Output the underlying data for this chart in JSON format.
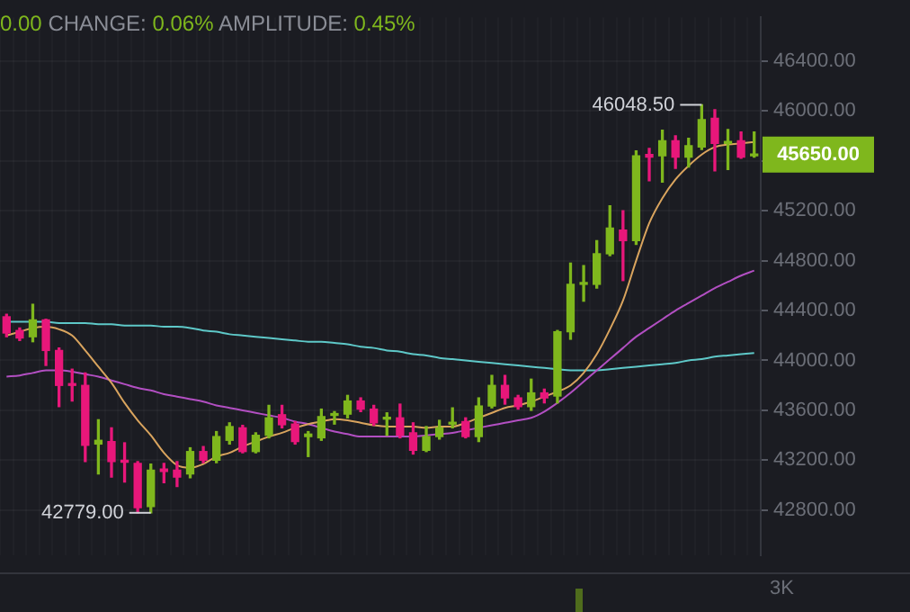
{
  "chart_data": [
    {
      "type": "candlestick",
      "title": "0.00 CHANGE: 0.06% AMPLITUDE: 0.45%",
      "categories": [
        null,
        null,
        null,
        null,
        null,
        null,
        null,
        null,
        null,
        null,
        null,
        null,
        null,
        null,
        null,
        null,
        null,
        null,
        null,
        null,
        null,
        null,
        null,
        null,
        null,
        null,
        null,
        null,
        null,
        null,
        null,
        null,
        null,
        null,
        null,
        null,
        null,
        null,
        null,
        null,
        null,
        null,
        null,
        null,
        null,
        null,
        null,
        null,
        null,
        null,
        null,
        null,
        null,
        null,
        null,
        null,
        null,
        null
      ],
      "ohlc": [
        [
          44350,
          44370,
          44190,
          44220
        ],
        [
          44240,
          44260,
          44160,
          44180
        ],
        [
          44190,
          44450,
          44150,
          44325
        ],
        [
          44325,
          44330,
          43960,
          44080
        ],
        [
          44080,
          44100,
          43630,
          43800
        ],
        [
          43810,
          43930,
          43675,
          43800
        ],
        [
          43800,
          43900,
          43190,
          43320
        ],
        [
          43330,
          43525,
          43090,
          43360
        ],
        [
          43350,
          43460,
          43065,
          43190
        ],
        [
          43195,
          43340,
          43025,
          43185
        ],
        [
          43175,
          43190,
          42779,
          42820
        ],
        [
          42830,
          43170,
          42779,
          43120
        ],
        [
          43130,
          43175,
          43020,
          43110
        ],
        [
          43120,
          43190,
          42990,
          43065
        ],
        [
          43090,
          43300,
          43060,
          43270
        ],
        [
          43270,
          43310,
          43180,
          43200
        ],
        [
          43200,
          43430,
          43180,
          43390
        ],
        [
          43360,
          43500,
          43330,
          43470
        ],
        [
          43460,
          43480,
          43260,
          43270
        ],
        [
          43270,
          43420,
          43260,
          43400
        ],
        [
          43400,
          43640,
          43380,
          43540
        ],
        [
          43565,
          43640,
          43460,
          43485
        ],
        [
          43490,
          43510,
          43330,
          43350
        ],
        [
          43390,
          43430,
          43230,
          43410
        ],
        [
          43380,
          43610,
          43360,
          43550
        ],
        [
          43560,
          43590,
          43490,
          43570
        ],
        [
          43570,
          43720,
          43540,
          43675
        ],
        [
          43675,
          43700,
          43590,
          43610
        ],
        [
          43610,
          43640,
          43480,
          43500
        ],
        [
          43530,
          43580,
          43400,
          43540
        ],
        [
          43540,
          43650,
          43380,
          43400
        ],
        [
          43420,
          43500,
          43250,
          43280
        ],
        [
          43280,
          43470,
          43270,
          43390
        ],
        [
          43390,
          43520,
          43370,
          43460
        ],
        [
          43490,
          43620,
          43460,
          43500
        ],
        [
          43510,
          43540,
          43380,
          43390
        ],
        [
          43390,
          43700,
          43350,
          43635
        ],
        [
          43635,
          43880,
          43620,
          43800
        ],
        [
          43800,
          43880,
          43650,
          43700
        ],
        [
          43700,
          43720,
          43610,
          43630
        ],
        [
          43630,
          43850,
          43600,
          43740
        ],
        [
          43740,
          43770,
          43660,
          43700
        ],
        [
          43715,
          44240,
          43660,
          44230
        ],
        [
          44230,
          44780,
          44170,
          44610
        ],
        [
          44610,
          44760,
          44475,
          44620
        ],
        [
          44610,
          44960,
          44580,
          44855
        ],
        [
          44855,
          45240,
          44840,
          45060
        ],
        [
          45045,
          45200,
          44640,
          44960
        ],
        [
          44960,
          45680,
          44930,
          45640
        ],
        [
          45650,
          45700,
          45440,
          45630
        ],
        [
          45640,
          45845,
          45430,
          45760
        ],
        [
          45760,
          45800,
          45540,
          45630
        ],
        [
          45630,
          45780,
          45550,
          45720
        ],
        [
          45710,
          46048.5,
          45690,
          45930
        ],
        [
          45940,
          46010,
          45520,
          45740
        ],
        [
          45740,
          45850,
          45530,
          45750
        ],
        [
          45760,
          45830,
          45620,
          45630
        ],
        [
          45640,
          45830,
          45630,
          45650
        ]
      ],
      "colors": [
        "#e8177a",
        "#e8177a",
        "#7fb71d",
        "#e8177a",
        "#e8177a",
        "#e8177a",
        "#e8177a",
        "#7fb71d",
        "#e8177a",
        "#e8177a",
        "#e8177a",
        "#7fb71d",
        "#e8177a",
        "#e8177a",
        "#7fb71d",
        "#e8177a",
        "#7fb71d",
        "#7fb71d",
        "#e8177a",
        "#7fb71d",
        "#7fb71d",
        "#e8177a",
        "#e8177a",
        "#7fb71d",
        "#7fb71d",
        "#7fb71d",
        "#7fb71d",
        "#e8177a",
        "#e8177a",
        "#7fb71d",
        "#e8177a",
        "#e8177a",
        "#7fb71d",
        "#7fb71d",
        "#7fb71d",
        "#e8177a",
        "#7fb71d",
        "#7fb71d",
        "#e8177a",
        "#e8177a",
        "#7fb71d",
        "#e8177a",
        "#7fb71d",
        "#7fb71d",
        "#7fb71d",
        "#7fb71d",
        "#7fb71d",
        "#e8177a",
        "#7fb71d",
        "#e8177a",
        "#7fb71d",
        "#e8177a",
        "#7fb71d",
        "#7fb71d",
        "#e8177a",
        "#7fb71d",
        "#e8177a",
        "#7fb71d"
      ],
      "series": [
        {
          "type": "line",
          "color": "#d9a45e",
          "values": [
            44200,
            44230,
            44260,
            44270,
            44250,
            44200,
            44080,
            43950,
            43820,
            43660,
            43520,
            43400,
            43260,
            43160,
            43140,
            43170,
            43230,
            43260,
            43310,
            43350,
            43390,
            43420,
            43460,
            43490,
            43510,
            43530,
            43520,
            43500,
            43480,
            43470,
            43470,
            43470,
            43460,
            43470,
            43470,
            43500,
            43540,
            43580,
            43620,
            43640,
            43670,
            43710,
            43750,
            43800,
            43900,
            44050,
            44250,
            44480,
            44800,
            45100,
            45300,
            45450,
            45560,
            45650,
            45710,
            45730,
            45740,
            45750
          ]
        },
        {
          "type": "line",
          "color": "#b24fc2",
          "values": [
            43870,
            43880,
            43900,
            43920,
            43920,
            43910,
            43890,
            43870,
            43840,
            43810,
            43780,
            43760,
            43730,
            43710,
            43690,
            43670,
            43640,
            43620,
            43600,
            43580,
            43560,
            43540,
            43510,
            43490,
            43460,
            43430,
            43410,
            43390,
            43390,
            43390,
            43390,
            43390,
            43400,
            43410,
            43420,
            43440,
            43460,
            43480,
            43500,
            43520,
            43540,
            43590,
            43660,
            43740,
            43830,
            43920,
            44010,
            44100,
            44190,
            44260,
            44330,
            44400,
            44460,
            44520,
            44580,
            44630,
            44680,
            44720
          ]
        },
        {
          "type": "line",
          "color": "#5ec8c8",
          "values": [
            44310,
            44310,
            44310,
            44310,
            44300,
            44300,
            44300,
            44290,
            44290,
            44280,
            44280,
            44280,
            44270,
            44270,
            44260,
            44240,
            44230,
            44210,
            44200,
            44190,
            44180,
            44170,
            44160,
            44150,
            44150,
            44140,
            44130,
            44110,
            44100,
            44080,
            44070,
            44050,
            44040,
            44020,
            44010,
            44000,
            43990,
            43980,
            43970,
            43960,
            43950,
            43940,
            43930,
            43920,
            43920,
            43920,
            43930,
            43940,
            43950,
            43960,
            43970,
            43980,
            44000,
            44010,
            44030,
            44040,
            44050,
            44060
          ]
        }
      ],
      "ylim": [
        42440,
        46750
      ],
      "yticks": [
        {
          "value": 42800,
          "label": "42800.00"
        },
        {
          "value": 43200,
          "label": "43200.00"
        },
        {
          "value": 43600,
          "label": "43600.00"
        },
        {
          "value": 44000,
          "label": "44000.00"
        },
        {
          "value": 44400,
          "label": "44400.00"
        },
        {
          "value": 44800,
          "label": "44800.00"
        },
        {
          "value": 45200,
          "label": "45200.00"
        },
        {
          "value": 45600,
          "label": null
        },
        {
          "value": 46000,
          "label": "46000.00"
        },
        {
          "value": 46400,
          "label": "46400.00"
        }
      ],
      "grid": true,
      "tick_labels": "y",
      "annotations": [
        "46048.50",
        "42779.00",
        "45650.00"
      ]
    },
    {
      "type": "other",
      "annotations": [
        "3K"
      ]
    }
  ]
}
